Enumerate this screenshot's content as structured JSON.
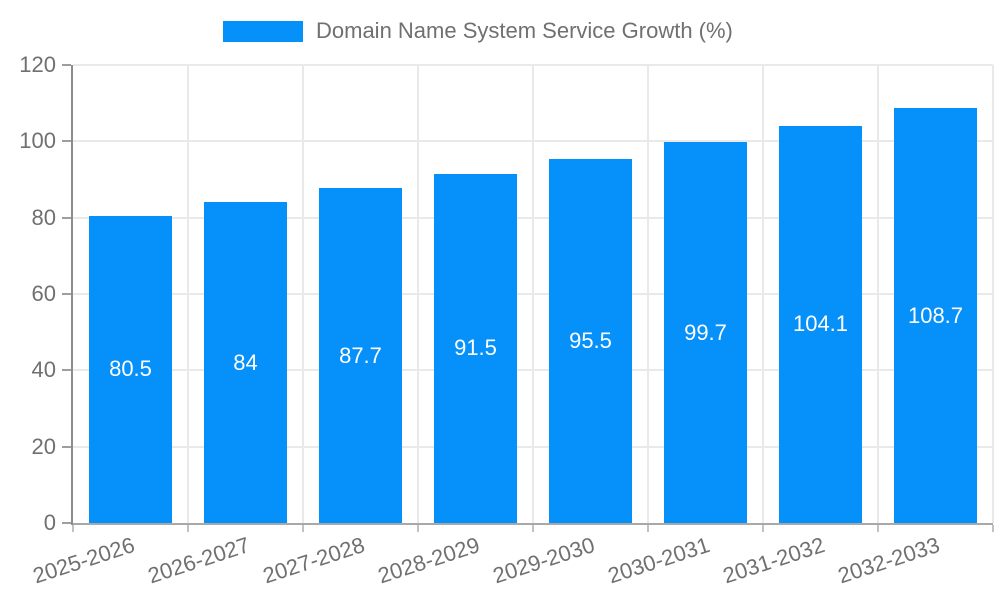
{
  "chart_data": {
    "type": "bar",
    "title": "Domain Name System Service Growth (%)",
    "categories": [
      "2025-2026",
      "2026-2027",
      "2027-2028",
      "2028-2029",
      "2029-2030",
      "2030-2031",
      "2031-2032",
      "2032-2033"
    ],
    "values": [
      80.5,
      84,
      87.7,
      91.5,
      95.5,
      99.7,
      104.1,
      108.7
    ],
    "value_labels": [
      "80.5",
      "84",
      "87.7",
      "91.5",
      "95.5",
      "99.7",
      "104.1",
      "108.7"
    ],
    "xlabel": "",
    "ylabel": "",
    "ylim": [
      0,
      120
    ],
    "y_ticks": [
      0,
      20,
      40,
      60,
      80,
      100,
      120
    ],
    "grid": true,
    "legend_position": "top",
    "bar_color": "#0590FA",
    "value_label_color": "#ffffff",
    "axis_text_color": "#707070"
  }
}
